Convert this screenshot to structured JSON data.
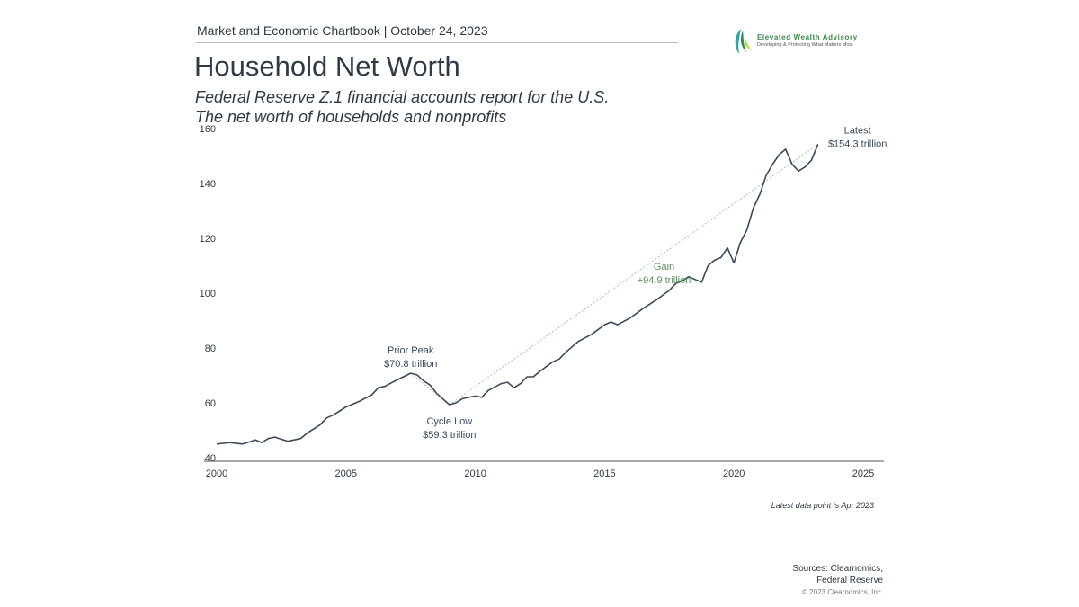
{
  "header": {
    "subhead": "Market and Economic Chartbook | October 24, 2023",
    "title": "Household Net Worth",
    "subtitle_1": "Federal Reserve Z.1 financial accounts report for the U.S.",
    "subtitle_2": "The net worth of households and nonprofits"
  },
  "logo": {
    "name": "Elevated Wealth Advisory",
    "tagline": "Developing & Protecting What Matters Most",
    "colors": [
      "#2e8b57",
      "#2aa6a0",
      "#c8d43a"
    ]
  },
  "chart_data": {
    "type": "line",
    "title": "",
    "xlabel": "",
    "ylabel": "",
    "xlim": [
      2000,
      2025.8
    ],
    "ylim": [
      40,
      160
    ],
    "x_ticks": [
      "2000",
      "2005",
      "2010",
      "2015",
      "2020",
      "2025"
    ],
    "y_ticks": [
      "40",
      "60",
      "80",
      "100",
      "120",
      "140",
      "160"
    ],
    "grid": false,
    "line_color": "#3a4a5a",
    "series": [
      {
        "x": [
          2000.0,
          2000.5,
          2001.0,
          2001.5,
          2001.75,
          2002.0,
          2002.25,
          2002.75,
          2003.0,
          2003.25,
          2003.5,
          2004.0,
          2004.25,
          2004.5,
          2005.0,
          2005.5,
          2006.0,
          2006.25,
          2006.5,
          2007.0,
          2007.5,
          2007.75,
          2008.0,
          2008.25,
          2008.5,
          2009.0,
          2009.25,
          2009.5,
          2010.0,
          2010.25,
          2010.5,
          2011.0,
          2011.25,
          2011.5,
          2011.75,
          2012.0,
          2012.25,
          2012.5,
          2013.0,
          2013.25,
          2013.5,
          2014.0,
          2014.5,
          2015.0,
          2015.25,
          2015.5,
          2016.0,
          2016.5,
          2017.0,
          2017.5,
          2017.75,
          2018.0,
          2018.25,
          2018.5,
          2018.75,
          2019.0,
          2019.25,
          2019.5,
          2019.75,
          2020.0,
          2020.25,
          2020.5,
          2020.75,
          2021.0,
          2021.25,
          2021.5,
          2021.75,
          2022.0,
          2022.25,
          2022.5,
          2022.75,
          2023.0,
          2023.25
        ],
        "y": [
          45,
          45.5,
          45,
          46.5,
          45.5,
          47,
          47.5,
          46,
          46.5,
          47,
          49,
          52,
          54.5,
          55.5,
          58.5,
          60.5,
          63,
          65.5,
          66,
          68.5,
          70.8,
          70.2,
          68,
          66.5,
          63.5,
          59.3,
          60,
          61.5,
          62.5,
          62,
          64.5,
          67,
          67.5,
          65.5,
          67,
          69.5,
          69.5,
          71.5,
          75,
          76,
          78.5,
          82.5,
          85,
          88.5,
          89.5,
          88.5,
          91,
          94.5,
          97.5,
          101,
          103.5,
          104.5,
          106,
          105,
          104,
          110,
          112,
          113,
          116.5,
          111,
          118.5,
          123,
          131,
          136,
          143,
          147,
          150.5,
          152.5,
          147,
          144.5,
          146,
          148.5,
          154.3
        ]
      }
    ],
    "reference_lines": [
      {
        "from": [
          2007.5,
          70.8
        ],
        "to": [
          2009.0,
          59.3
        ],
        "style": "dotted",
        "color": "#e89a9a"
      },
      {
        "from": [
          2009.0,
          59.3
        ],
        "to": [
          2023.25,
          154.3
        ],
        "style": "dotted",
        "color": "#9cc9a6"
      }
    ],
    "annotations": [
      {
        "label": "Prior Peak",
        "value": "$70.8 trillion",
        "x": 2007.5,
        "y": 70.8,
        "color": "#3a4a5a"
      },
      {
        "label": "Cycle Low",
        "value": "$59.3 trillion",
        "x": 2009.0,
        "y": 59.3,
        "color": "#3a4a5a"
      },
      {
        "label": "Gain",
        "value": "+94.9 trillion",
        "x": 2017.3,
        "y": 98,
        "color": "#5c8f5f"
      },
      {
        "label": "Latest",
        "value": "$154.3 trillion",
        "x": 2023.25,
        "y": 154.3,
        "color": "#3a4a5a"
      }
    ]
  },
  "footer": {
    "note": "Latest data point is Apr 2023",
    "sources_1": "Sources: Clearnomics,",
    "sources_2": "Federal Reserve",
    "copyright": "© 2023 Clearnomics, Inc."
  }
}
